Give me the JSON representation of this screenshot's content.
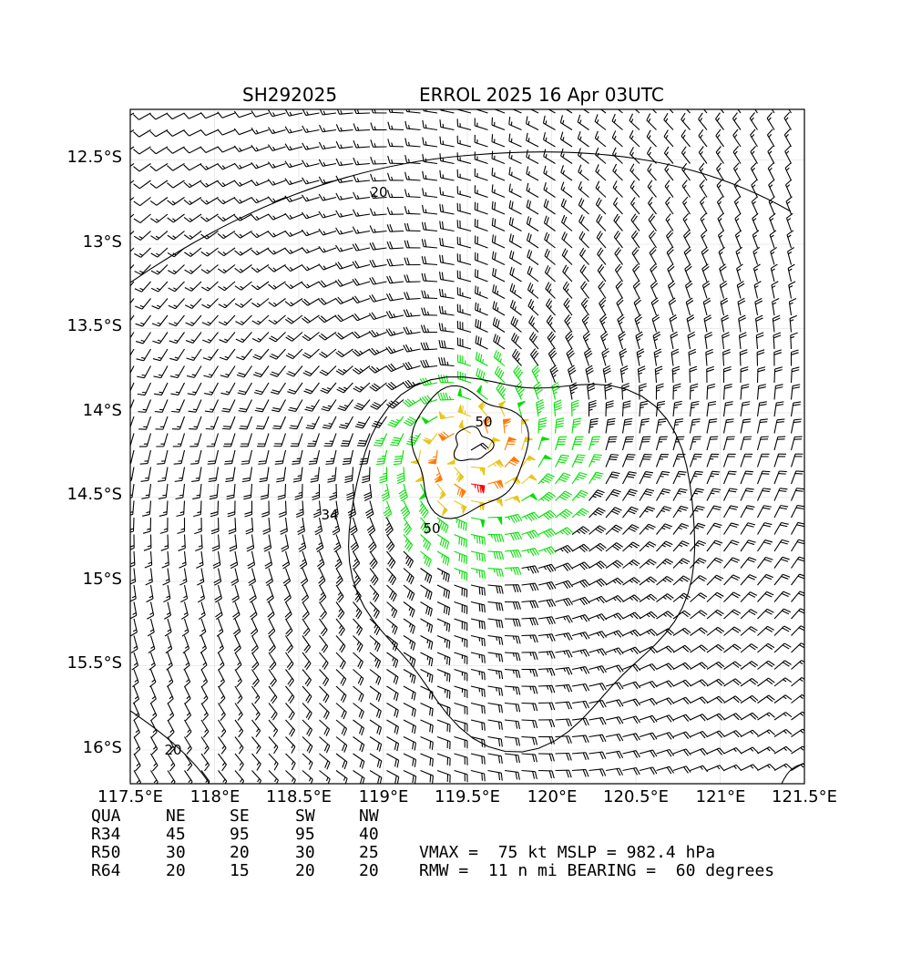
{
  "header": {
    "storm_id": "SH292025",
    "storm_title": "ERROL 2025 16 Apr 03UTC"
  },
  "chart_data": {
    "type": "wind-barb-map",
    "xlim": [
      117.5,
      121.5
    ],
    "ylim": [
      -16.2,
      -12.2
    ],
    "x_ticks": [
      117.5,
      118.0,
      118.5,
      119.0,
      119.5,
      120.0,
      120.5,
      121.0,
      121.5
    ],
    "x_tick_labels": [
      "117.5°E",
      "118°E",
      "118.5°E",
      "119°E",
      "119.5°E",
      "120°E",
      "120.5°E",
      "121°E",
      "121.5°E"
    ],
    "y_ticks": [
      -12.5,
      -13.0,
      -13.5,
      -14.0,
      -14.5,
      -15.0,
      -15.5,
      -16.0
    ],
    "y_tick_labels": [
      "12.5°S",
      "13°S",
      "13.5°S",
      "14°S",
      "14.5°S",
      "15°S",
      "15.5°S",
      "16°S"
    ],
    "grid": true,
    "contour_labels": [
      "20",
      "34",
      "50",
      "50",
      "20"
    ],
    "contour_levels_kt": [
      20,
      34,
      50
    ],
    "barb_colors": {
      "below_34": "#000000",
      "34_to_50": "#00e000",
      "50_to_64": "#e6c619",
      "64_plus": "#ff7a00",
      "max": "#ff0000"
    },
    "center": {
      "lon": 119.5,
      "lat": -14.2
    },
    "vmax_kt": 75,
    "rmw_nmi": 11,
    "bearing_deg": 60
  },
  "wind_radii": {
    "headers": [
      "QUA",
      "NE",
      "SE",
      "SW",
      "NW"
    ],
    "rows": [
      {
        "label": "R34",
        "values": [
          "45",
          "95",
          "95",
          "40"
        ]
      },
      {
        "label": "R50",
        "values": [
          "30",
          "20",
          "30",
          "25"
        ]
      },
      {
        "label": "R64",
        "values": [
          "20",
          "15",
          "20",
          "20"
        ]
      }
    ]
  },
  "summary": {
    "line1": "VMAX =  75 kt MSLP = 982.4 hPa",
    "line2": "RMW =  11 n mi BEARING =  60 degrees"
  }
}
